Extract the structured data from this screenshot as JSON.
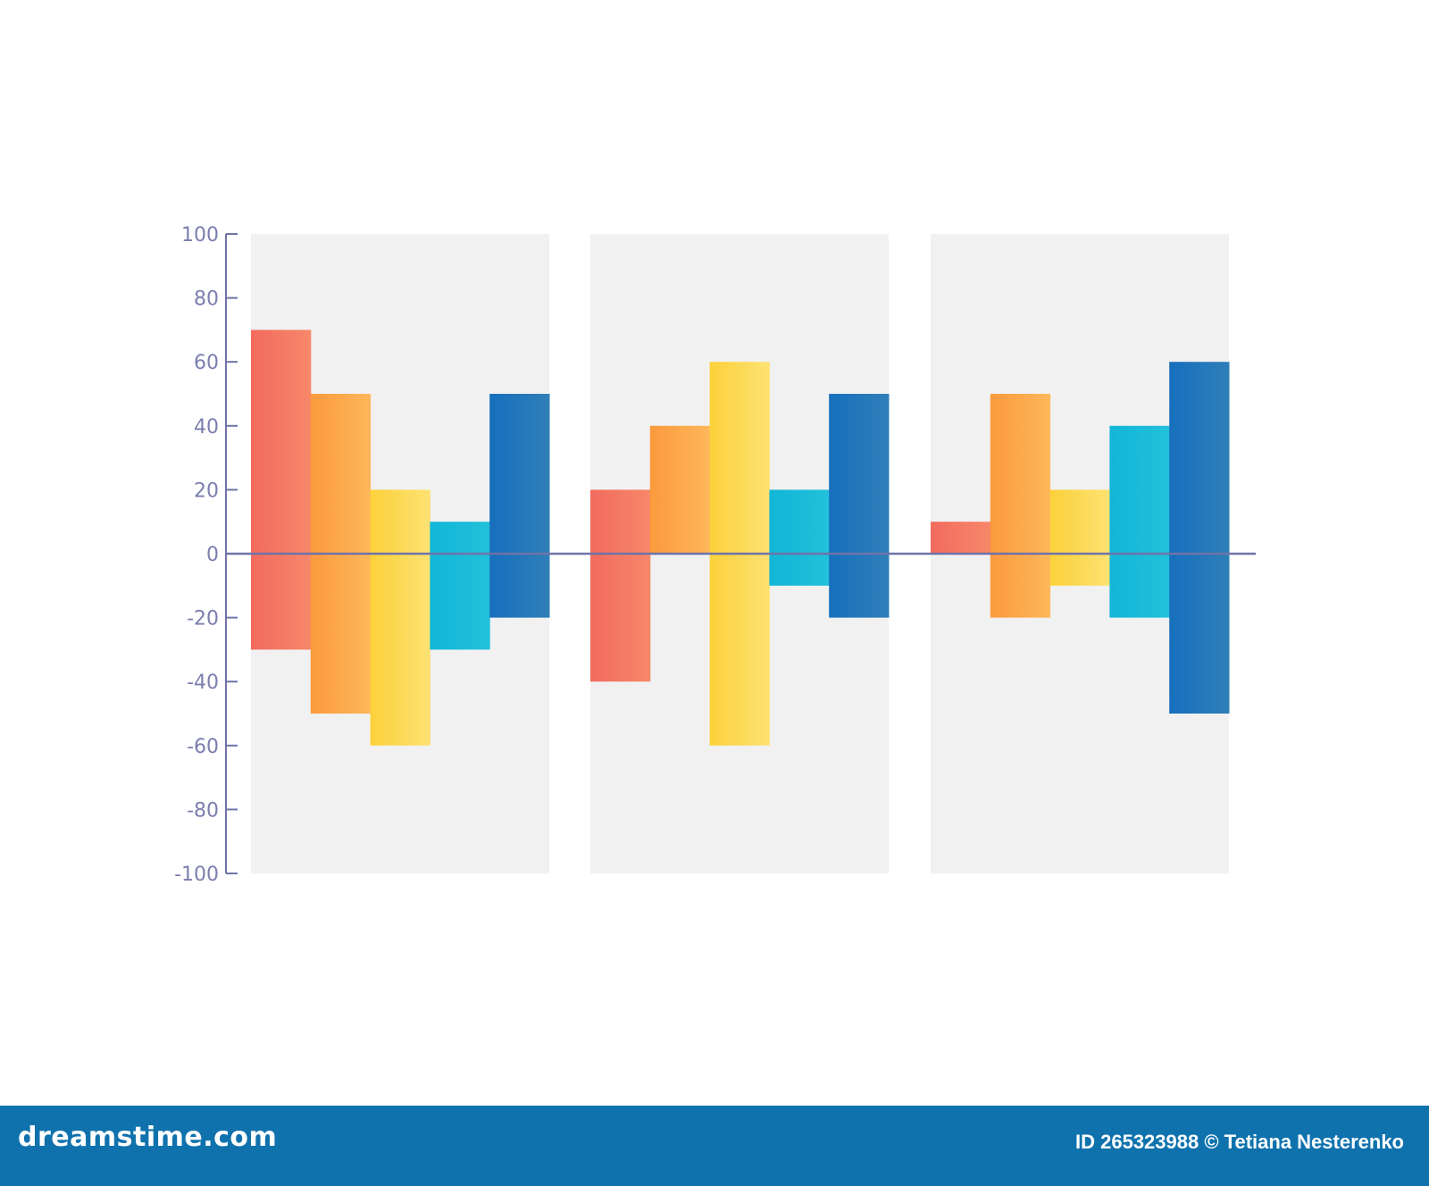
{
  "chart_data": {
    "type": "bar",
    "style": "floating range bars",
    "ylim": [
      -100,
      100
    ],
    "y_ticks": [
      "100",
      "80",
      "60",
      "40",
      "20",
      "0",
      "-20",
      "-40",
      "-60",
      "-80",
      "-100"
    ],
    "groups": [
      {
        "bars": [
          {
            "low": -30,
            "high": 70
          },
          {
            "low": -50,
            "high": 50
          },
          {
            "low": -60,
            "high": 20
          },
          {
            "low": -30,
            "high": 10
          },
          {
            "low": -20,
            "high": 50
          }
        ]
      },
      {
        "bars": [
          {
            "low": -40,
            "high": 20
          },
          {
            "low": 0,
            "high": 40
          },
          {
            "low": -60,
            "high": 60
          },
          {
            "low": -10,
            "high": 20
          },
          {
            "low": -20,
            "high": 50
          }
        ]
      },
      {
        "bars": [
          {
            "low": 0,
            "high": 10
          },
          {
            "low": -20,
            "high": 50
          },
          {
            "low": -10,
            "high": 20
          },
          {
            "low": -20,
            "high": 40
          },
          {
            "low": -50,
            "high": 60
          }
        ]
      }
    ],
    "bar_colors": [
      [
        "#f26b5e",
        "#f7876a"
      ],
      [
        "#fb9a3d",
        "#fdb75a"
      ],
      [
        "#fcd13a",
        "#fde273"
      ],
      [
        "#12b6d8",
        "#22c0da"
      ],
      [
        "#176fbd",
        "#2f7fb8"
      ]
    ],
    "panel_color": "#f1f1f1",
    "axis_color": "#6f73a8"
  },
  "footer": {
    "brand": "dreamstime.com",
    "credit": "ID 265323988 © Tetiana Nesterenko",
    "background": "#0f72ad"
  }
}
